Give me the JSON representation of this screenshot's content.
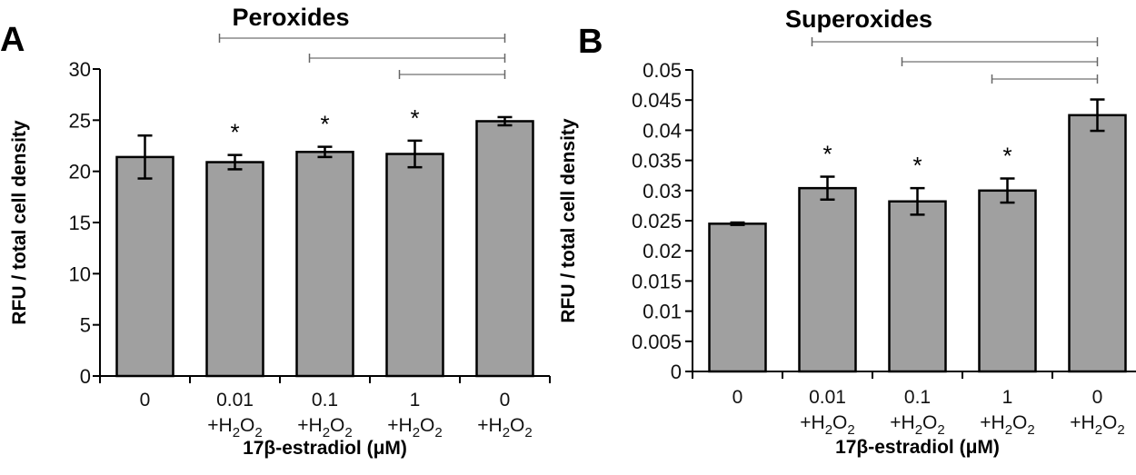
{
  "chart_data": [
    {
      "type": "bar",
      "panel_label": "A",
      "title": "Peroxides",
      "xlabel": "17β-estradiol (μM)",
      "ylabel": "RFU / total cell density",
      "ylim": [
        0,
        30
      ],
      "yticks": [
        0,
        5,
        10,
        15,
        20,
        25,
        30
      ],
      "ytick_labels": [
        "0",
        "5",
        "10",
        "15",
        "20",
        "25",
        "30"
      ],
      "categories": [
        {
          "dose": "0",
          "treatment": ""
        },
        {
          "dose": "0.01",
          "treatment": "+H2O2"
        },
        {
          "dose": "0.1",
          "treatment": "+H2O2"
        },
        {
          "dose": "1",
          "treatment": "+H2O2"
        },
        {
          "dose": "0",
          "treatment": "+H2O2"
        }
      ],
      "values": [
        21.4,
        20.9,
        21.9,
        21.7,
        24.9
      ],
      "errors": [
        2.1,
        0.7,
        0.5,
        1.3,
        0.4
      ],
      "significance_stars": [
        "",
        "*",
        "*",
        "*",
        ""
      ],
      "comparison_brackets": [
        [
          1,
          4
        ],
        [
          2,
          4
        ],
        [
          3,
          4
        ]
      ],
      "bar_color": "#a0a0a0"
    },
    {
      "type": "bar",
      "panel_label": "B",
      "title": "Superoxides",
      "xlabel": "17β-estradiol (μM)",
      "ylabel": "RFU / total cell density",
      "ylim": [
        0,
        0.05
      ],
      "yticks": [
        0,
        0.005,
        0.01,
        0.015,
        0.02,
        0.025,
        0.03,
        0.035,
        0.04,
        0.045,
        0.05
      ],
      "ytick_labels": [
        "0",
        "0.005",
        "0.01",
        "0.015",
        "0.02",
        "0.025",
        "0.03",
        "0.035",
        "0.04",
        "0.045",
        "0.05"
      ],
      "categories": [
        {
          "dose": "0",
          "treatment": ""
        },
        {
          "dose": "0.01",
          "treatment": "+H2O2"
        },
        {
          "dose": "0.1",
          "treatment": "+H2O2"
        },
        {
          "dose": "1",
          "treatment": "+H2O2"
        },
        {
          "dose": "0",
          "treatment": "+H2O2"
        }
      ],
      "values": [
        0.0245,
        0.0304,
        0.0282,
        0.03,
        0.0425
      ],
      "errors": [
        0.0002,
        0.0019,
        0.0022,
        0.002,
        0.0026
      ],
      "significance_stars": [
        "",
        "*",
        "*",
        "*",
        ""
      ],
      "comparison_brackets": [
        [
          1,
          4
        ],
        [
          2,
          4
        ],
        [
          3,
          4
        ]
      ],
      "bar_color": "#a0a0a0"
    }
  ]
}
